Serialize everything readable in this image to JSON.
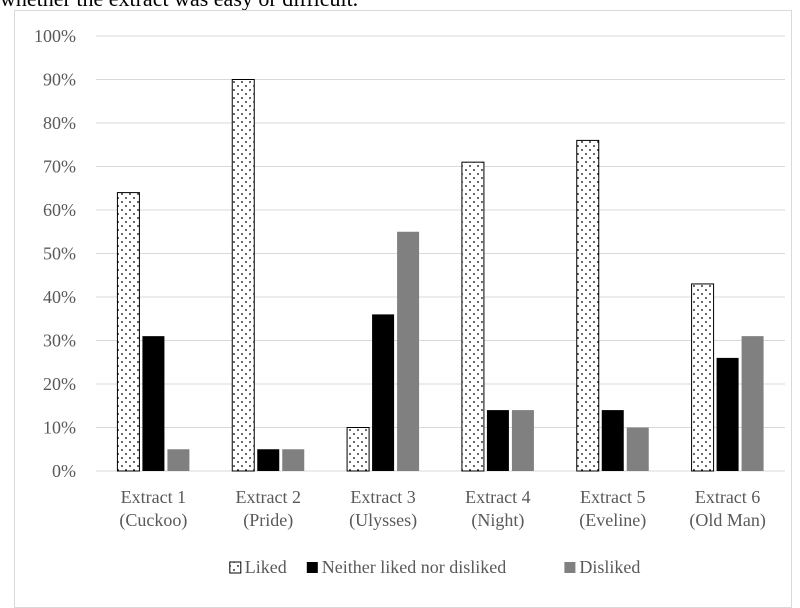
{
  "caption_fragment": "whether the extract was easy or difficult.",
  "colors": {
    "liked": "#ffffff",
    "neither": "#000000",
    "disliked": "#808080",
    "grid": "#d9d9d9",
    "text": "#595959"
  },
  "chart_data": {
    "type": "bar",
    "categories": [
      [
        "Extract 1",
        "(Cuckoo)"
      ],
      [
        "Extract 2",
        "(Pride)"
      ],
      [
        "Extract 3",
        "(Ulysses)"
      ],
      [
        "Extract 4",
        "(Night)"
      ],
      [
        "Extract 5",
        "(Eveline)"
      ],
      [
        "Extract 6",
        "(Old Man)"
      ]
    ],
    "series": [
      {
        "name": "Liked",
        "values": [
          64,
          90,
          10,
          71,
          76,
          43
        ],
        "pattern": "dotted",
        "color": "#ffffff"
      },
      {
        "name": "Neither liked nor disliked",
        "values": [
          31,
          5,
          36,
          14,
          14,
          26
        ],
        "color": "#000000"
      },
      {
        "name": "Disliked",
        "values": [
          5,
          5,
          55,
          14,
          10,
          31
        ],
        "color": "#808080"
      }
    ],
    "yticks": [
      "0%",
      "10%",
      "20%",
      "30%",
      "40%",
      "50%",
      "60%",
      "70%",
      "80%",
      "90%",
      "100%"
    ],
    "ylim": [
      0,
      100
    ],
    "grid": true,
    "legend_position": "bottom",
    "title": "",
    "xlabel": "",
    "ylabel": ""
  }
}
